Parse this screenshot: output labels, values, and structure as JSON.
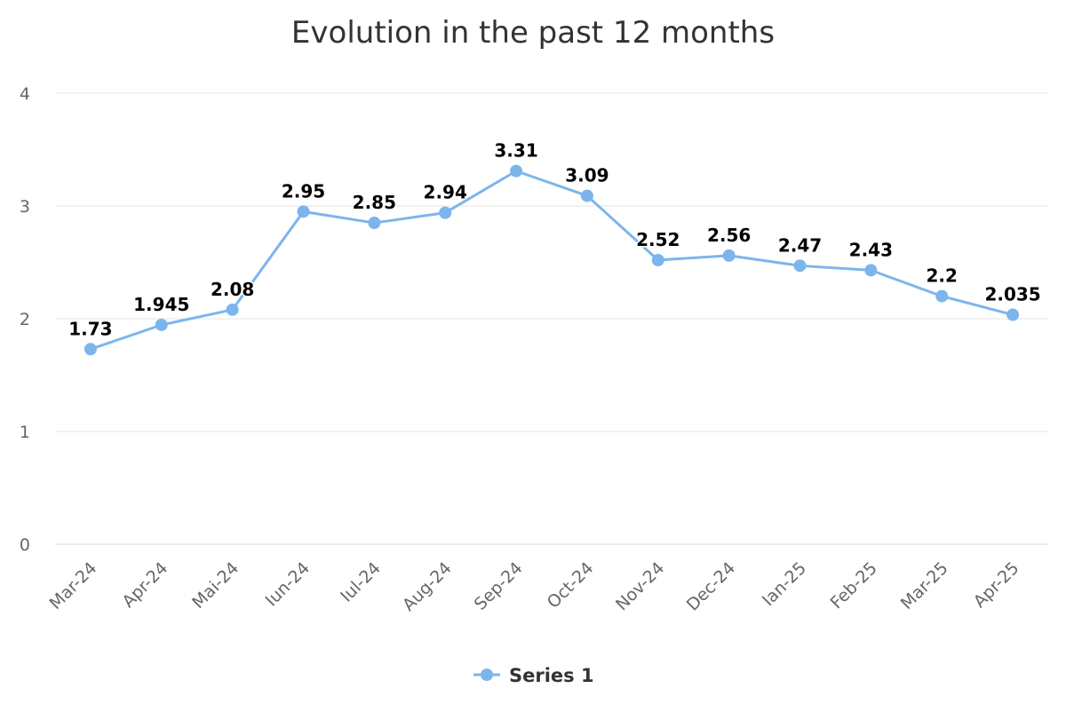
{
  "chart_data": {
    "type": "line",
    "title": "Evolution in the past 12 months",
    "xlabel": "",
    "ylabel": "",
    "categories": [
      "Mar-24",
      "Apr-24",
      "Mai-24",
      "Iun-24",
      "Iul-24",
      "Aug-24",
      "Sep-24",
      "Oct-24",
      "Nov-24",
      "Dec-24",
      "Ian-25",
      "Feb-25",
      "Mar-25",
      "Apr-25"
    ],
    "series": [
      {
        "name": "Series 1",
        "values": [
          1.73,
          1.945,
          2.08,
          2.95,
          2.85,
          2.94,
          3.31,
          3.09,
          2.52,
          2.56,
          2.47,
          2.43,
          2.2,
          2.035
        ],
        "labels": [
          "1.73",
          "1.945",
          "2.08",
          "2.95",
          "2.85",
          "2.94",
          "3.31",
          "3.09",
          "2.52",
          "2.56",
          "2.47",
          "2.43",
          "2.2",
          "2.035"
        ],
        "color": "#7cb5ec"
      }
    ],
    "ylim": [
      0,
      4
    ],
    "yticks": [
      "0",
      "1",
      "2",
      "3",
      "4"
    ],
    "grid": true,
    "legend_position": "bottom-center",
    "data_labels": true
  }
}
